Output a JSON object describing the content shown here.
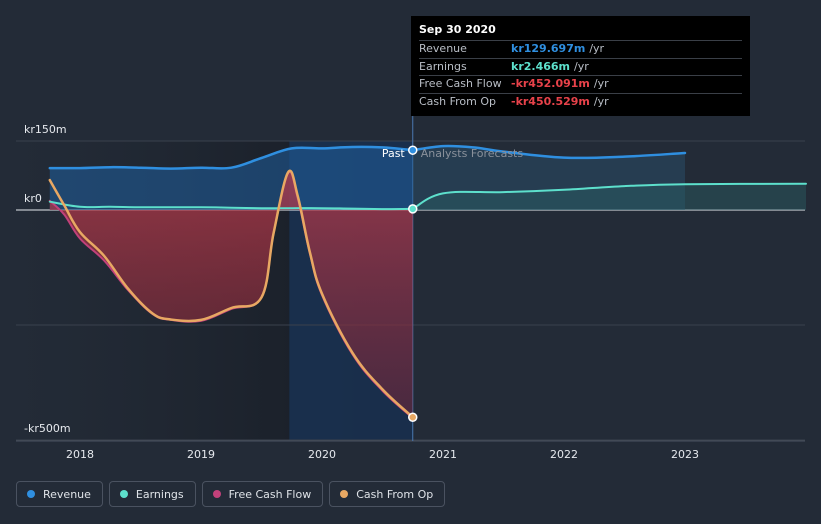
{
  "chart_data": {
    "type": "line",
    "x_unit": "year",
    "y_unit": "kr m",
    "ylim": [
      -500,
      150
    ],
    "xlim": [
      2017.5,
      2024.0
    ],
    "y_ticks": [
      {
        "value": 150,
        "label": "kr150m"
      },
      {
        "value": 0,
        "label": "kr0"
      },
      {
        "value": -500,
        "label": "-kr500m"
      }
    ],
    "x_ticks": [
      {
        "value": 2018,
        "label": "2018"
      },
      {
        "value": 2019,
        "label": "2019"
      },
      {
        "value": 2020,
        "label": "2020"
      },
      {
        "value": 2021,
        "label": "2021"
      },
      {
        "value": 2022,
        "label": "2022"
      },
      {
        "value": 2023,
        "label": "2023"
      }
    ],
    "divider_x": 2020.75,
    "zone_labels": {
      "past": "Past",
      "forecast": "Analysts Forecasts"
    },
    "series": [
      {
        "name": "Revenue",
        "color": "#2f8fe0",
        "style": "past",
        "points": [
          [
            2017.75,
            91
          ],
          [
            2018.0,
            91
          ],
          [
            2018.25,
            93
          ],
          [
            2018.5,
            92
          ],
          [
            2018.75,
            90
          ],
          [
            2019.0,
            92
          ],
          [
            2019.25,
            92
          ],
          [
            2019.5,
            113
          ],
          [
            2019.75,
            134
          ],
          [
            2020.0,
            134
          ],
          [
            2020.25,
            137
          ],
          [
            2020.5,
            136
          ],
          [
            2020.75,
            130
          ]
        ]
      },
      {
        "name": "Revenue forecast",
        "color": "#2f8fe0",
        "style": "forecast",
        "points": [
          [
            2020.75,
            130
          ],
          [
            2021.0,
            139
          ],
          [
            2021.25,
            136
          ],
          [
            2021.5,
            127
          ],
          [
            2022.0,
            114
          ],
          [
            2022.5,
            116
          ],
          [
            2023.0,
            124
          ]
        ]
      },
      {
        "name": "Earnings",
        "color": "#5de0cc",
        "style": "past",
        "points": [
          [
            2017.75,
            18
          ],
          [
            2018.0,
            7
          ],
          [
            2018.25,
            7
          ],
          [
            2018.5,
            6
          ],
          [
            2018.75,
            6
          ],
          [
            2019.0,
            6
          ],
          [
            2019.25,
            5
          ],
          [
            2019.5,
            4
          ],
          [
            2019.75,
            4
          ],
          [
            2020.0,
            4
          ],
          [
            2020.25,
            3
          ],
          [
            2020.5,
            2
          ],
          [
            2020.75,
            2.466
          ]
        ]
      },
      {
        "name": "Earnings forecast",
        "color": "#5de0cc",
        "style": "forecast",
        "points": [
          [
            2020.75,
            2.466
          ],
          [
            2021.0,
            36
          ],
          [
            2021.5,
            39
          ],
          [
            2022.0,
            44
          ],
          [
            2022.5,
            52
          ],
          [
            2023.0,
            56
          ],
          [
            2024.0,
            57
          ]
        ]
      },
      {
        "name": "Free Cash Flow",
        "color": "#c2417a",
        "style": "past",
        "points": [
          [
            2017.75,
            20
          ],
          [
            2017.87,
            -10
          ],
          [
            2018.0,
            -62
          ],
          [
            2018.2,
            -110
          ],
          [
            2018.4,
            -175
          ],
          [
            2018.6,
            -226
          ],
          [
            2018.75,
            -239
          ],
          [
            2019.0,
            -241
          ],
          [
            2019.25,
            -215
          ],
          [
            2019.5,
            -190
          ],
          [
            2019.6,
            -50
          ],
          [
            2019.72,
            80
          ],
          [
            2019.8,
            25
          ],
          [
            2019.9,
            -95
          ],
          [
            2020.0,
            -185
          ],
          [
            2020.25,
            -313
          ],
          [
            2020.5,
            -393
          ],
          [
            2020.75,
            -452.091
          ]
        ]
      },
      {
        "name": "Cash From Op",
        "color": "#e8a863",
        "style": "past",
        "points": [
          [
            2017.75,
            65
          ],
          [
            2017.87,
            10
          ],
          [
            2018.0,
            -48
          ],
          [
            2018.2,
            -100
          ],
          [
            2018.4,
            -172
          ],
          [
            2018.6,
            -225
          ],
          [
            2018.75,
            -238
          ],
          [
            2019.0,
            -239
          ],
          [
            2019.25,
            -213
          ],
          [
            2019.5,
            -190
          ],
          [
            2019.6,
            -50
          ],
          [
            2019.72,
            82
          ],
          [
            2019.8,
            30
          ],
          [
            2019.9,
            -92
          ],
          [
            2020.0,
            -182
          ],
          [
            2020.25,
            -310
          ],
          [
            2020.5,
            -390
          ],
          [
            2020.75,
            -450.529
          ]
        ]
      }
    ]
  },
  "tooltip": {
    "date": "Sep 30 2020",
    "rows": [
      {
        "name": "Revenue",
        "value": "kr129.697m",
        "unit": "/yr",
        "color": "#2f8fe0"
      },
      {
        "name": "Earnings",
        "value": "kr2.466m",
        "unit": "/yr",
        "color": "#5de0cc"
      },
      {
        "name": "Free Cash Flow",
        "value": "-kr452.091m",
        "unit": "/yr",
        "color": "#e8424a"
      },
      {
        "name": "Cash From Op",
        "value": "-kr450.529m",
        "unit": "/yr",
        "color": "#e8424a"
      }
    ]
  },
  "legend": [
    {
      "label": "Revenue",
      "color": "#2f8fe0"
    },
    {
      "label": "Earnings",
      "color": "#5de0cc"
    },
    {
      "label": "Free Cash Flow",
      "color": "#c2417a"
    },
    {
      "label": "Cash From Op",
      "color": "#e8a863"
    }
  ]
}
